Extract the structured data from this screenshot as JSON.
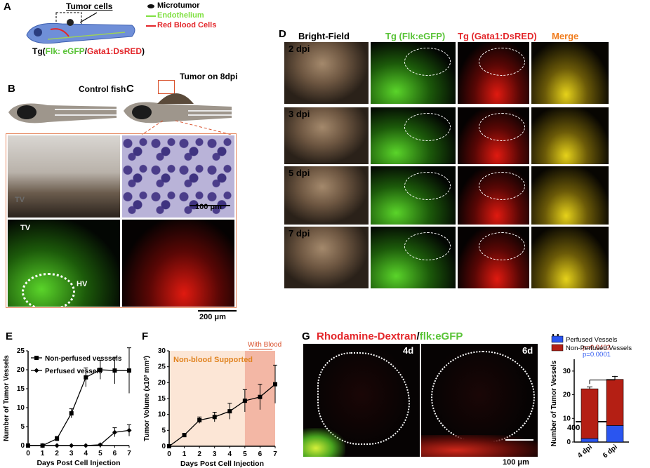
{
  "panels": {
    "A": "A",
    "B": "B",
    "C": "C",
    "D": "D",
    "E": "E",
    "F": "F",
    "G": "G",
    "H": "H"
  },
  "panelA": {
    "tumor_cells": "Tumor cells",
    "legend": [
      "Microtumor",
      "Endothelium",
      "Red Blood Cells"
    ],
    "tg_prefix": "Tg(",
    "tg_flk": "Flk: eGFP",
    "tg_slash": "/",
    "tg_gata": "Gata1:DsRED",
    "tg_suffix": ")",
    "colors": {
      "micro": "#111111",
      "endo": "#7fe040",
      "rbc": "#e3262a"
    }
  },
  "panelB": {
    "title": "Control fish"
  },
  "panelC": {
    "title": "Tumor on 8dpi",
    "tv": "TV",
    "tv2": "TV",
    "hv": "HV",
    "scale1": "100 μm",
    "scale2": "200 μm"
  },
  "panelD": {
    "headers": [
      "Bright-Field",
      "Tg (Flk:eGFP)",
      "Tg (Gata1:DsRED)",
      "Merge"
    ],
    "header_colors": [
      "#000000",
      "#59c337",
      "#e3262a",
      "#f07b1b"
    ],
    "rows": [
      "2 dpi",
      "3 dpi",
      "5 dpi",
      "7 dpi"
    ],
    "scale": "400 μm"
  },
  "panelG": {
    "title_red": "Rhodamine-Dextran",
    "title_sep": "/",
    "title_green": "flk:eGFP",
    "left_tag": "4d",
    "right_tag": "6d",
    "scale": "100 μm"
  },
  "chart_data": [
    {
      "id": "E",
      "type": "line",
      "xlabel": "Days Post Cell Injection",
      "ylabel": "Number of Tumor Vessels",
      "x": [
        0,
        1,
        2,
        3,
        4,
        5,
        6,
        7
      ],
      "xlim": [
        0,
        7
      ],
      "ylim": [
        0,
        25
      ],
      "yticks": [
        0,
        5,
        10,
        15,
        20,
        25
      ],
      "legend_position": "top-left",
      "series": [
        {
          "name": "Non-perfused vesssels",
          "marker": "square",
          "values": [
            0,
            0,
            1.8,
            8.5,
            18,
            20,
            19.8,
            19.8
          ],
          "errors": [
            0,
            0,
            0.6,
            1.2,
            2.5,
            2.5,
            3.5,
            6
          ]
        },
        {
          "name": "Perfused vessels",
          "marker": "diamond",
          "values": [
            0,
            0,
            0,
            0,
            0,
            0.2,
            3.5,
            4
          ],
          "errors": [
            0,
            0,
            0,
            0,
            0,
            0.2,
            1.2,
            1.5
          ]
        }
      ]
    },
    {
      "id": "F",
      "type": "line",
      "xlabel": "Days Post Cell Injection",
      "ylabel": "Tumor Volume (x10³ mm³)",
      "x": [
        0,
        1,
        2,
        3,
        4,
        5,
        6,
        7
      ],
      "xlim": [
        0,
        7
      ],
      "ylim": [
        0,
        30
      ],
      "yticks": [
        0,
        5,
        10,
        15,
        20,
        25,
        30
      ],
      "values": [
        0,
        3.5,
        8.2,
        9.2,
        11,
        14.3,
        15.5,
        19.5
      ],
      "errors": [
        0,
        0.5,
        1,
        1.5,
        2.5,
        3.5,
        4,
        6
      ],
      "regions": [
        {
          "label": "Non-blood Supported",
          "from": 0,
          "to": 5,
          "color": "#fce6d6"
        },
        {
          "label": "With Blood",
          "from": 5,
          "to": 7,
          "color": "#f3b7a5"
        }
      ]
    },
    {
      "id": "H",
      "type": "bar",
      "ylabel": "Number of Tumor Vessels",
      "categories": [
        "4 dpi",
        "6 dpi"
      ],
      "ylim": [
        0,
        35
      ],
      "yticks": [
        0,
        10,
        20,
        30
      ],
      "series": [
        {
          "name": "Perfused Vessels",
          "color": "#2a55f0",
          "values": [
            1.5,
            7
          ],
          "errors": [
            0.3,
            0.8
          ]
        },
        {
          "name": "Non-Perfused Vessels",
          "color": "#b41f14",
          "values": [
            21,
            19.5
          ],
          "errors": [
            0.8,
            1.2
          ]
        }
      ],
      "pvalues": [
        {
          "text": "p=0.0402",
          "color": "#b41f14"
        },
        {
          "text": "p=0.0001",
          "color": "#2a55f0"
        }
      ]
    }
  ]
}
